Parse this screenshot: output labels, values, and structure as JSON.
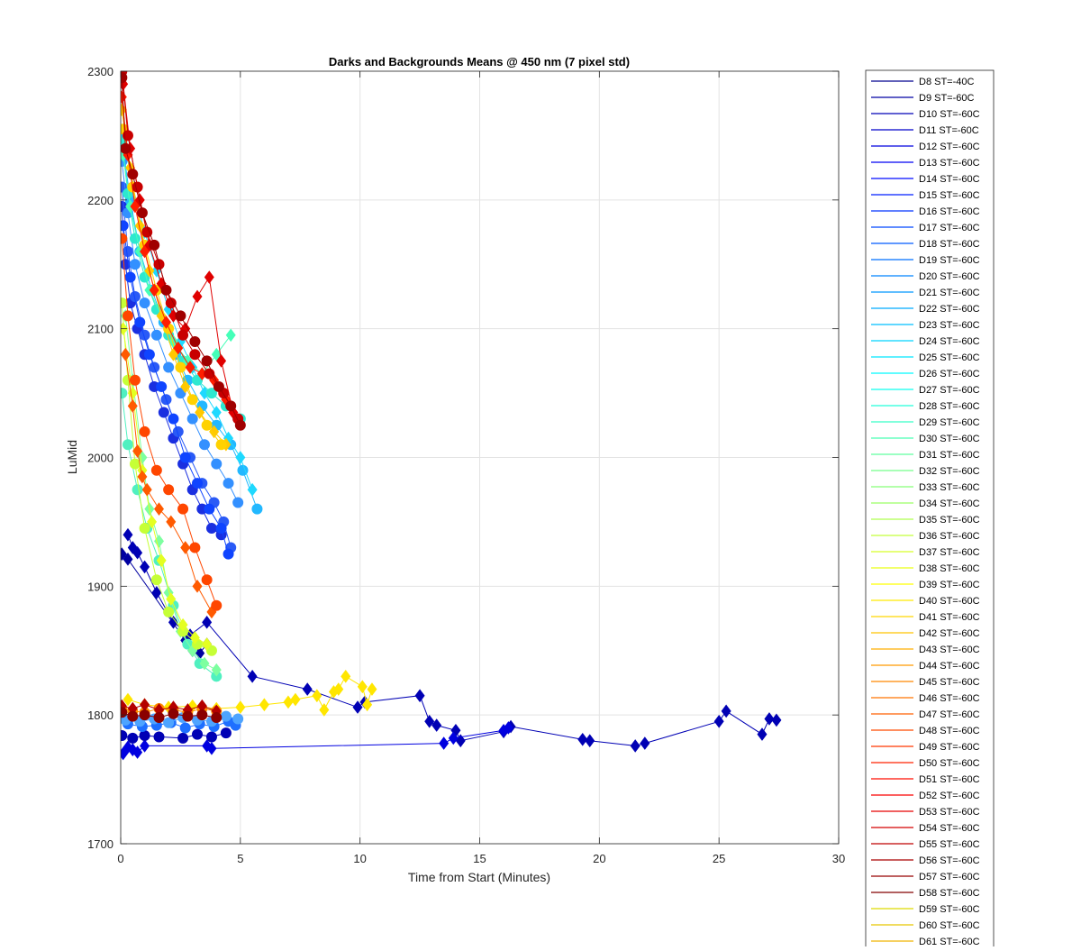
{
  "chart_data": {
    "type": "line",
    "title": "Darks and Backgrounds Means @ 450 nm (7 pixel std)",
    "xlabel": "Time from Start (Minutes)",
    "ylabel": "LuMid",
    "xlim": [
      0,
      30
    ],
    "ylim": [
      1700,
      2300
    ],
    "xticks": [
      "0",
      "5",
      "10",
      "15",
      "20",
      "25",
      "30"
    ],
    "yticks": [
      "1700",
      "1800",
      "1900",
      "2000",
      "2100",
      "2200",
      "2300"
    ],
    "grid": true,
    "legend_position": "right-outside",
    "legend": [
      {
        "label": "D8 ST=-40C",
        "color": "#00008f"
      },
      {
        "label": "D9 ST=-60C",
        "color": "#0000a3"
      },
      {
        "label": "D10 ST=-60C",
        "color": "#0000b7"
      },
      {
        "label": "D11 ST=-60C",
        "color": "#0000cb"
      },
      {
        "label": "D12 ST=-60C",
        "color": "#0000df"
      },
      {
        "label": "D13 ST=-60C",
        "color": "#0000f3"
      },
      {
        "label": "D14 ST=-60C",
        "color": "#000bff"
      },
      {
        "label": "D15 ST=-60C",
        "color": "#001fff"
      },
      {
        "label": "D16 ST=-60C",
        "color": "#0033ff"
      },
      {
        "label": "D17 ST=-60C",
        "color": "#0047ff"
      },
      {
        "label": "D18 ST=-60C",
        "color": "#005bff"
      },
      {
        "label": "D19 ST=-60C",
        "color": "#006fff"
      },
      {
        "label": "D20 ST=-60C",
        "color": "#0083ff"
      },
      {
        "label": "D21 ST=-60C",
        "color": "#0097ff"
      },
      {
        "label": "D22 ST=-60C",
        "color": "#00abff"
      },
      {
        "label": "D23 ST=-60C",
        "color": "#00bfff"
      },
      {
        "label": "D24 ST=-60C",
        "color": "#00d3ff"
      },
      {
        "label": "D25 ST=-60C",
        "color": "#00e7ff"
      },
      {
        "label": "D26 ST=-60C",
        "color": "#00fbff"
      },
      {
        "label": "D27 ST=-60C",
        "color": "#0fffef"
      },
      {
        "label": "D28 ST=-60C",
        "color": "#23ffdb"
      },
      {
        "label": "D29 ST=-60C",
        "color": "#37ffc7"
      },
      {
        "label": "D30 ST=-60C",
        "color": "#4bffb3"
      },
      {
        "label": "D31 ST=-60C",
        "color": "#5fff9f"
      },
      {
        "label": "D32 ST=-60C",
        "color": "#73ff8b"
      },
      {
        "label": "D33 ST=-60C",
        "color": "#87ff77"
      },
      {
        "label": "D34 ST=-60C",
        "color": "#9bff63"
      },
      {
        "label": "D35 ST=-60C",
        "color": "#afff4f"
      },
      {
        "label": "D36 ST=-60C",
        "color": "#c3ff3b"
      },
      {
        "label": "D37 ST=-60C",
        "color": "#d7ff27"
      },
      {
        "label": "D38 ST=-60C",
        "color": "#ebff13"
      },
      {
        "label": "D39 ST=-60C",
        "color": "#ffff00"
      },
      {
        "label": "D40 ST=-60C",
        "color": "#ffeb00"
      },
      {
        "label": "D41 ST=-60C",
        "color": "#ffd700"
      },
      {
        "label": "D42 ST=-60C",
        "color": "#ffc300"
      },
      {
        "label": "D43 ST=-60C",
        "color": "#ffaf00"
      },
      {
        "label": "D44 ST=-60C",
        "color": "#ff9b00"
      },
      {
        "label": "D45 ST=-60C",
        "color": "#ff8700"
      },
      {
        "label": "D46 ST=-60C",
        "color": "#ff7300"
      },
      {
        "label": "D47 ST=-60C",
        "color": "#ff5f00"
      },
      {
        "label": "D48 ST=-60C",
        "color": "#ff4b00"
      },
      {
        "label": "D49 ST=-60C",
        "color": "#ff3700"
      },
      {
        "label": "D50 ST=-60C",
        "color": "#ff2300"
      },
      {
        "label": "D51 ST=-60C",
        "color": "#ff0f00"
      },
      {
        "label": "D52 ST=-60C",
        "color": "#fb0000"
      },
      {
        "label": "D53 ST=-60C",
        "color": "#e70000"
      },
      {
        "label": "D54 ST=-60C",
        "color": "#d30000"
      },
      {
        "label": "D55 ST=-60C",
        "color": "#bf0000"
      },
      {
        "label": "D56 ST=-60C",
        "color": "#ab0000"
      },
      {
        "label": "D57 ST=-60C",
        "color": "#970000"
      },
      {
        "label": "D58 ST=-60C",
        "color": "#830000"
      },
      {
        "label": "D59 ST=-60C",
        "color": "#ddd900"
      },
      {
        "label": "D60 ST=-60C",
        "color": "#e8c800"
      },
      {
        "label": "D61 ST=-60C",
        "color": "#f0b400"
      }
    ],
    "series": [
      {
        "color": "#0000b4",
        "marker": "diamond",
        "x": [
          0.3,
          0.5,
          0.7,
          1.0,
          1.5,
          2.2,
          2.9,
          3.6,
          5.5,
          7.8,
          9.9,
          10.2,
          12.5,
          12.9,
          13.2,
          14.0,
          14.2,
          16.0,
          16.3,
          19.3,
          19.6,
          21.5,
          21.9,
          25.0,
          25.3,
          26.8,
          27.1,
          27.4
        ],
        "y": [
          1940,
          1930,
          1926,
          1915,
          1895,
          1872,
          1862,
          1872,
          1830,
          1820,
          1806,
          1810,
          1815,
          1795,
          1792,
          1788,
          1780,
          1787,
          1791,
          1781,
          1780,
          1776,
          1778,
          1795,
          1803,
          1785,
          1797,
          1796
        ]
      },
      {
        "color": "#0000e0",
        "marker": "diamond",
        "x": [
          0.1,
          0.3,
          0.5,
          0.7,
          1.0,
          3.6,
          3.8,
          13.5,
          13.9,
          16.0,
          16.2
        ],
        "y": [
          1770,
          1775,
          1773,
          1771,
          1776,
          1776,
          1774,
          1778,
          1782,
          1788,
          1790
        ]
      },
      {
        "color": "#0000a0",
        "marker": "diamond",
        "x": [
          0.05,
          0.3,
          2.7,
          3.0,
          3.3,
          3.6
        ],
        "y": [
          1925,
          1921,
          1858,
          1850,
          1848,
          1855
        ]
      },
      {
        "color": "#0000b4",
        "marker": "circle",
        "x": [
          0.05,
          0.5,
          1.0,
          1.6,
          2.6,
          3.2,
          3.8,
          4.4
        ],
        "y": [
          1784,
          1782,
          1784,
          1783,
          1782,
          1785,
          1783,
          1786
        ]
      },
      {
        "color": "#1e6fff",
        "marker": "circle",
        "x": [
          0.3,
          0.9,
          1.5,
          2.1,
          2.7,
          3.3,
          3.9,
          4.5,
          4.8
        ],
        "y": [
          1793,
          1791,
          1792,
          1794,
          1790,
          1793,
          1791,
          1795,
          1792
        ]
      },
      {
        "color": "#4ea4ff",
        "marker": "circle",
        "x": [
          0.2,
          0.8,
          1.4,
          2.0,
          2.6,
          3.2,
          3.8,
          4.4,
          4.9
        ],
        "y": [
          1796,
          1795,
          1797,
          1794,
          1798,
          1796,
          1795,
          1799,
          1797
        ]
      },
      {
        "color": "#1a2fe0",
        "marker": "circle",
        "x": [
          0.05,
          0.2,
          0.4,
          0.7,
          1.0,
          1.4,
          1.8,
          2.2,
          2.6,
          3.0,
          3.4,
          3.8,
          4.2
        ],
        "y": [
          2195,
          2150,
          2120,
          2100,
          2080,
          2055,
          2035,
          2015,
          1995,
          1975,
          1960,
          1945,
          1940
        ]
      },
      {
        "color": "#2a5af6",
        "marker": "circle",
        "x": [
          0.05,
          0.3,
          0.6,
          1.0,
          1.4,
          1.9,
          2.4,
          2.9,
          3.4,
          3.9,
          4.3,
          4.6
        ],
        "y": [
          2210,
          2160,
          2125,
          2095,
          2070,
          2045,
          2020,
          2000,
          1980,
          1965,
          1950,
          1930
        ]
      },
      {
        "color": "#0f44ff",
        "marker": "circle",
        "x": [
          0.1,
          0.4,
          0.8,
          1.2,
          1.7,
          2.2,
          2.7,
          3.2,
          3.7,
          4.2,
          4.5
        ],
        "y": [
          2180,
          2140,
          2105,
          2080,
          2055,
          2030,
          2000,
          1980,
          1960,
          1945,
          1925
        ]
      },
      {
        "color": "#3390ff",
        "marker": "circle",
        "x": [
          0.05,
          0.3,
          0.6,
          1.0,
          1.5,
          2.0,
          2.5,
          3.0,
          3.5,
          4.0,
          4.5,
          4.9
        ],
        "y": [
          2230,
          2190,
          2150,
          2120,
          2095,
          2070,
          2050,
          2030,
          2010,
          1995,
          1980,
          1965
        ]
      },
      {
        "color": "#22b8ff",
        "marker": "circle",
        "x": [
          0.1,
          0.4,
          0.8,
          1.3,
          1.8,
          2.3,
          2.8,
          3.4,
          4.0,
          4.6,
          5.1,
          5.7
        ],
        "y": [
          2240,
          2200,
          2160,
          2130,
          2105,
          2080,
          2060,
          2040,
          2025,
          2010,
          1990,
          1960
        ]
      },
      {
        "color": "#1ed9ff",
        "marker": "diamond",
        "x": [
          0.1,
          0.5,
          1.0,
          1.5,
          2.0,
          2.5,
          3.0,
          3.5,
          4.0,
          4.5,
          5.0,
          5.5
        ],
        "y": [
          2250,
          2210,
          2175,
          2145,
          2115,
          2090,
          2070,
          2050,
          2035,
          2015,
          2000,
          1975
        ]
      },
      {
        "color": "#2ee8d0",
        "marker": "circle",
        "x": [
          0.05,
          0.3,
          0.6,
          1.0,
          1.5,
          2.0,
          2.6,
          3.2,
          3.8,
          4.4,
          5.0
        ],
        "y": [
          2245,
          2205,
          2170,
          2140,
          2115,
          2095,
          2075,
          2060,
          2050,
          2040,
          2030
        ]
      },
      {
        "color": "#45ffb8",
        "marker": "diamond",
        "x": [
          0.1,
          0.4,
          0.8,
          1.2,
          1.7,
          2.2,
          2.8,
          3.4,
          4.0,
          4.6
        ],
        "y": [
          2235,
          2195,
          2160,
          2130,
          2110,
          2090,
          2075,
          2065,
          2080,
          2095
        ]
      },
      {
        "color": "#50f0c0",
        "marker": "circle",
        "x": [
          0.05,
          0.3,
          0.7,
          1.1,
          1.6,
          2.2,
          2.8,
          3.3,
          4.0
        ],
        "y": [
          2050,
          2010,
          1975,
          1945,
          1920,
          1885,
          1855,
          1840,
          1830
        ]
      },
      {
        "color": "#7dffa0",
        "marker": "diamond",
        "x": [
          0.2,
          0.5,
          0.9,
          1.2,
          1.6,
          2.0,
          2.5,
          3.0,
          3.5,
          4.0
        ],
        "y": [
          2110,
          2060,
          2000,
          1960,
          1935,
          1895,
          1865,
          1850,
          1840,
          1835
        ]
      },
      {
        "color": "#c6ff36",
        "marker": "circle",
        "x": [
          0.05,
          0.3,
          0.6,
          1.0,
          1.5,
          2.0,
          2.6,
          3.2,
          3.8
        ],
        "y": [
          2120,
          2060,
          1995,
          1945,
          1905,
          1880,
          1865,
          1855,
          1850
        ]
      },
      {
        "color": "#e4ff22",
        "marker": "diamond",
        "x": [
          0.1,
          0.5,
          0.9,
          1.3,
          1.7,
          2.1,
          2.6,
          3.1,
          3.6
        ],
        "y": [
          2100,
          2050,
          1990,
          1950,
          1920,
          1890,
          1870,
          1860,
          1855
        ]
      },
      {
        "color": "#ffe600",
        "marker": "diamond",
        "x": [
          0.3,
          1.0,
          2.0,
          3.0,
          4.0,
          5.0,
          6.0,
          7.0,
          7.3,
          8.2,
          8.5,
          8.9,
          9.1,
          9.4,
          10.1,
          10.3,
          10.5
        ],
        "y": [
          1812,
          1808,
          1806,
          1807,
          1805,
          1806,
          1808,
          1810,
          1812,
          1815,
          1804,
          1818,
          1820,
          1830,
          1822,
          1808,
          1820
        ]
      },
      {
        "color": "#ffc800",
        "marker": "diamond",
        "x": [
          0.05,
          0.4,
          0.8,
          1.2,
          1.7,
          2.2,
          2.7,
          3.3,
          3.9,
          4.4
        ],
        "y": [
          2270,
          2225,
          2180,
          2145,
          2110,
          2080,
          2055,
          2035,
          2020,
          2010
        ]
      },
      {
        "color": "#ffd200",
        "marker": "circle",
        "x": [
          0.1,
          0.5,
          1.0,
          1.5,
          2.0,
          2.5,
          3.0,
          3.6,
          4.2
        ],
        "y": [
          2255,
          2210,
          2165,
          2130,
          2100,
          2070,
          2045,
          2025,
          2010
        ]
      },
      {
        "color": "#ff8c00",
        "marker": "circle",
        "x": [
          0.05,
          0.5,
          1.0,
          1.6,
          2.2,
          2.8,
          3.4,
          4.0
        ],
        "y": [
          1805,
          1803,
          1802,
          1805,
          1804,
          1802,
          1805,
          1803
        ]
      },
      {
        "color": "#ff5a00",
        "marker": "diamond",
        "x": [
          0.2,
          0.5,
          0.7,
          0.9,
          1.1,
          1.6,
          2.1,
          2.7,
          3.2,
          3.8
        ],
        "y": [
          2080,
          2040,
          2005,
          1985,
          1975,
          1960,
          1950,
          1930,
          1900,
          1880
        ]
      },
      {
        "color": "#ff4600",
        "marker": "circle",
        "x": [
          0.05,
          0.3,
          0.6,
          1.0,
          1.5,
          2.0,
          2.6,
          3.1,
          3.6,
          4.0
        ],
        "y": [
          2170,
          2110,
          2060,
          2020,
          1990,
          1975,
          1960,
          1930,
          1905,
          1885
        ]
      },
      {
        "color": "#ff1e00",
        "marker": "diamond",
        "x": [
          0.05,
          0.3,
          0.6,
          1.0,
          1.4,
          1.9,
          2.4,
          2.9,
          3.4,
          3.9,
          4.4
        ],
        "y": [
          2280,
          2235,
          2195,
          2160,
          2130,
          2105,
          2085,
          2070,
          2065,
          2060,
          2045
        ]
      },
      {
        "color": "#e00000",
        "marker": "diamond",
        "x": [
          0.1,
          0.4,
          0.8,
          1.2,
          1.7,
          2.2,
          2.7,
          3.2,
          3.7,
          4.2,
          4.7
        ],
        "y": [
          2290,
          2240,
          2200,
          2165,
          2135,
          2110,
          2100,
          2125,
          2140,
          2075,
          2035
        ]
      },
      {
        "color": "#c80000",
        "marker": "circle",
        "x": [
          0.05,
          0.3,
          0.7,
          1.1,
          1.6,
          2.1,
          2.6,
          3.1,
          3.7,
          4.3,
          4.9
        ],
        "y": [
          2300,
          2250,
          2210,
          2175,
          2150,
          2120,
          2095,
          2080,
          2065,
          2050,
          2030
        ]
      },
      {
        "color": "#a00000",
        "marker": "circle",
        "x": [
          0.05,
          0.2,
          0.5,
          0.9,
          1.4,
          1.9,
          2.5,
          3.1,
          3.6,
          4.1,
          4.6,
          5.0
        ],
        "y": [
          2295,
          2240,
          2220,
          2190,
          2165,
          2130,
          2110,
          2090,
          2075,
          2055,
          2040,
          2025
        ]
      },
      {
        "color": "#b40000",
        "marker": "diamond",
        "x": [
          0.05,
          0.5,
          1.0,
          1.6,
          2.2,
          2.8,
          3.4,
          4.0
        ],
        "y": [
          1807,
          1805,
          1808,
          1804,
          1806,
          1804,
          1807,
          1803
        ]
      },
      {
        "color": "#8a0000",
        "marker": "circle",
        "x": [
          0.05,
          0.5,
          1.0,
          1.6,
          2.2,
          2.8,
          3.4,
          4.0
        ],
        "y": [
          1802,
          1799,
          1800,
          1798,
          1801,
          1799,
          1800,
          1798
        ]
      }
    ]
  }
}
